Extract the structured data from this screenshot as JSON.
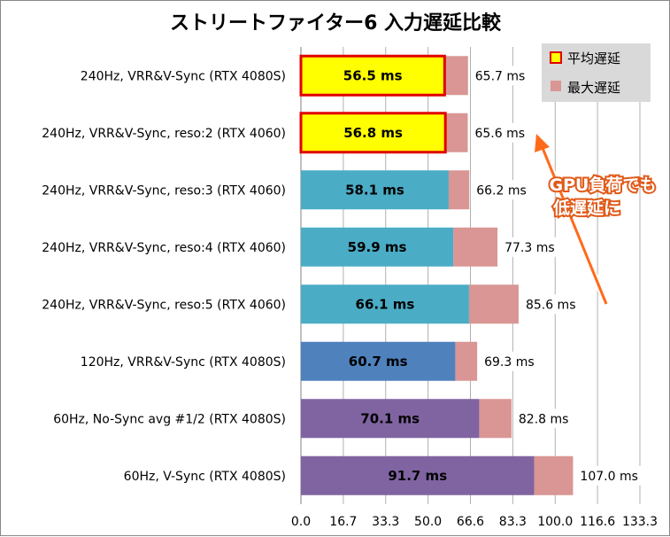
{
  "chart_data": {
    "type": "bar",
    "title": "ストリートファイター6 入力遅延比較",
    "categories": [
      "240Hz, VRR&V-Sync (RTX 4080S)",
      "240Hz, VRR&V-Sync, reso:2 (RTX 4060)",
      "240Hz, VRR&V-Sync, reso:3 (RTX 4060)",
      "240Hz, VRR&V-Sync, reso:4 (RTX 4060)",
      "240Hz, VRR&V-Sync, reso:5 (RTX 4060)",
      "120Hz, VRR&V-Sync (RTX 4080S)",
      "60Hz, No-Sync avg #1/2 (RTX 4080S)",
      "60Hz, V-Sync (RTX 4080S)"
    ],
    "series": [
      {
        "name": "平均遅延",
        "values": [
          56.5,
          56.8,
          58.1,
          59.9,
          66.1,
          60.7,
          70.1,
          91.7
        ],
        "labels": [
          "56.5 ms",
          "56.8 ms",
          "58.1 ms",
          "59.9 ms",
          "66.1 ms",
          "60.7 ms",
          "70.1 ms",
          "91.7 ms"
        ],
        "colors": [
          "#ffff00",
          "#ffff00",
          "#4bacc6",
          "#4bacc6",
          "#4bacc6",
          "#4f81bd",
          "#8064a2",
          "#8064a2"
        ],
        "highlight_border": [
          true,
          true,
          false,
          false,
          false,
          false,
          false,
          false
        ]
      },
      {
        "name": "最大遅延",
        "values": [
          65.7,
          65.6,
          66.2,
          77.3,
          85.6,
          69.3,
          82.8,
          107.0
        ],
        "labels": [
          "65.7 ms",
          "65.6 ms",
          "66.2 ms",
          "77.3 ms",
          "85.6 ms",
          "69.3 ms",
          "82.8 ms",
          "107.0 ms"
        ],
        "color": "#d99694"
      }
    ],
    "xlim": [
      0,
      133.3
    ],
    "xticks": [
      "0.0",
      "16.7",
      "33.3",
      "50.0",
      "66.6",
      "83.3",
      "100.0",
      "116.6",
      "133.3"
    ],
    "grid": true,
    "legend": "top-right",
    "legend_entries": [
      "平均遅延",
      "最大遅延"
    ],
    "annotation": {
      "lines": [
        "GPU負荷でも",
        "低遅延に"
      ],
      "color": "#ff6a1a"
    },
    "colors": {
      "highlight_border": "#e00000",
      "grid": "#b0b0b0"
    }
  }
}
